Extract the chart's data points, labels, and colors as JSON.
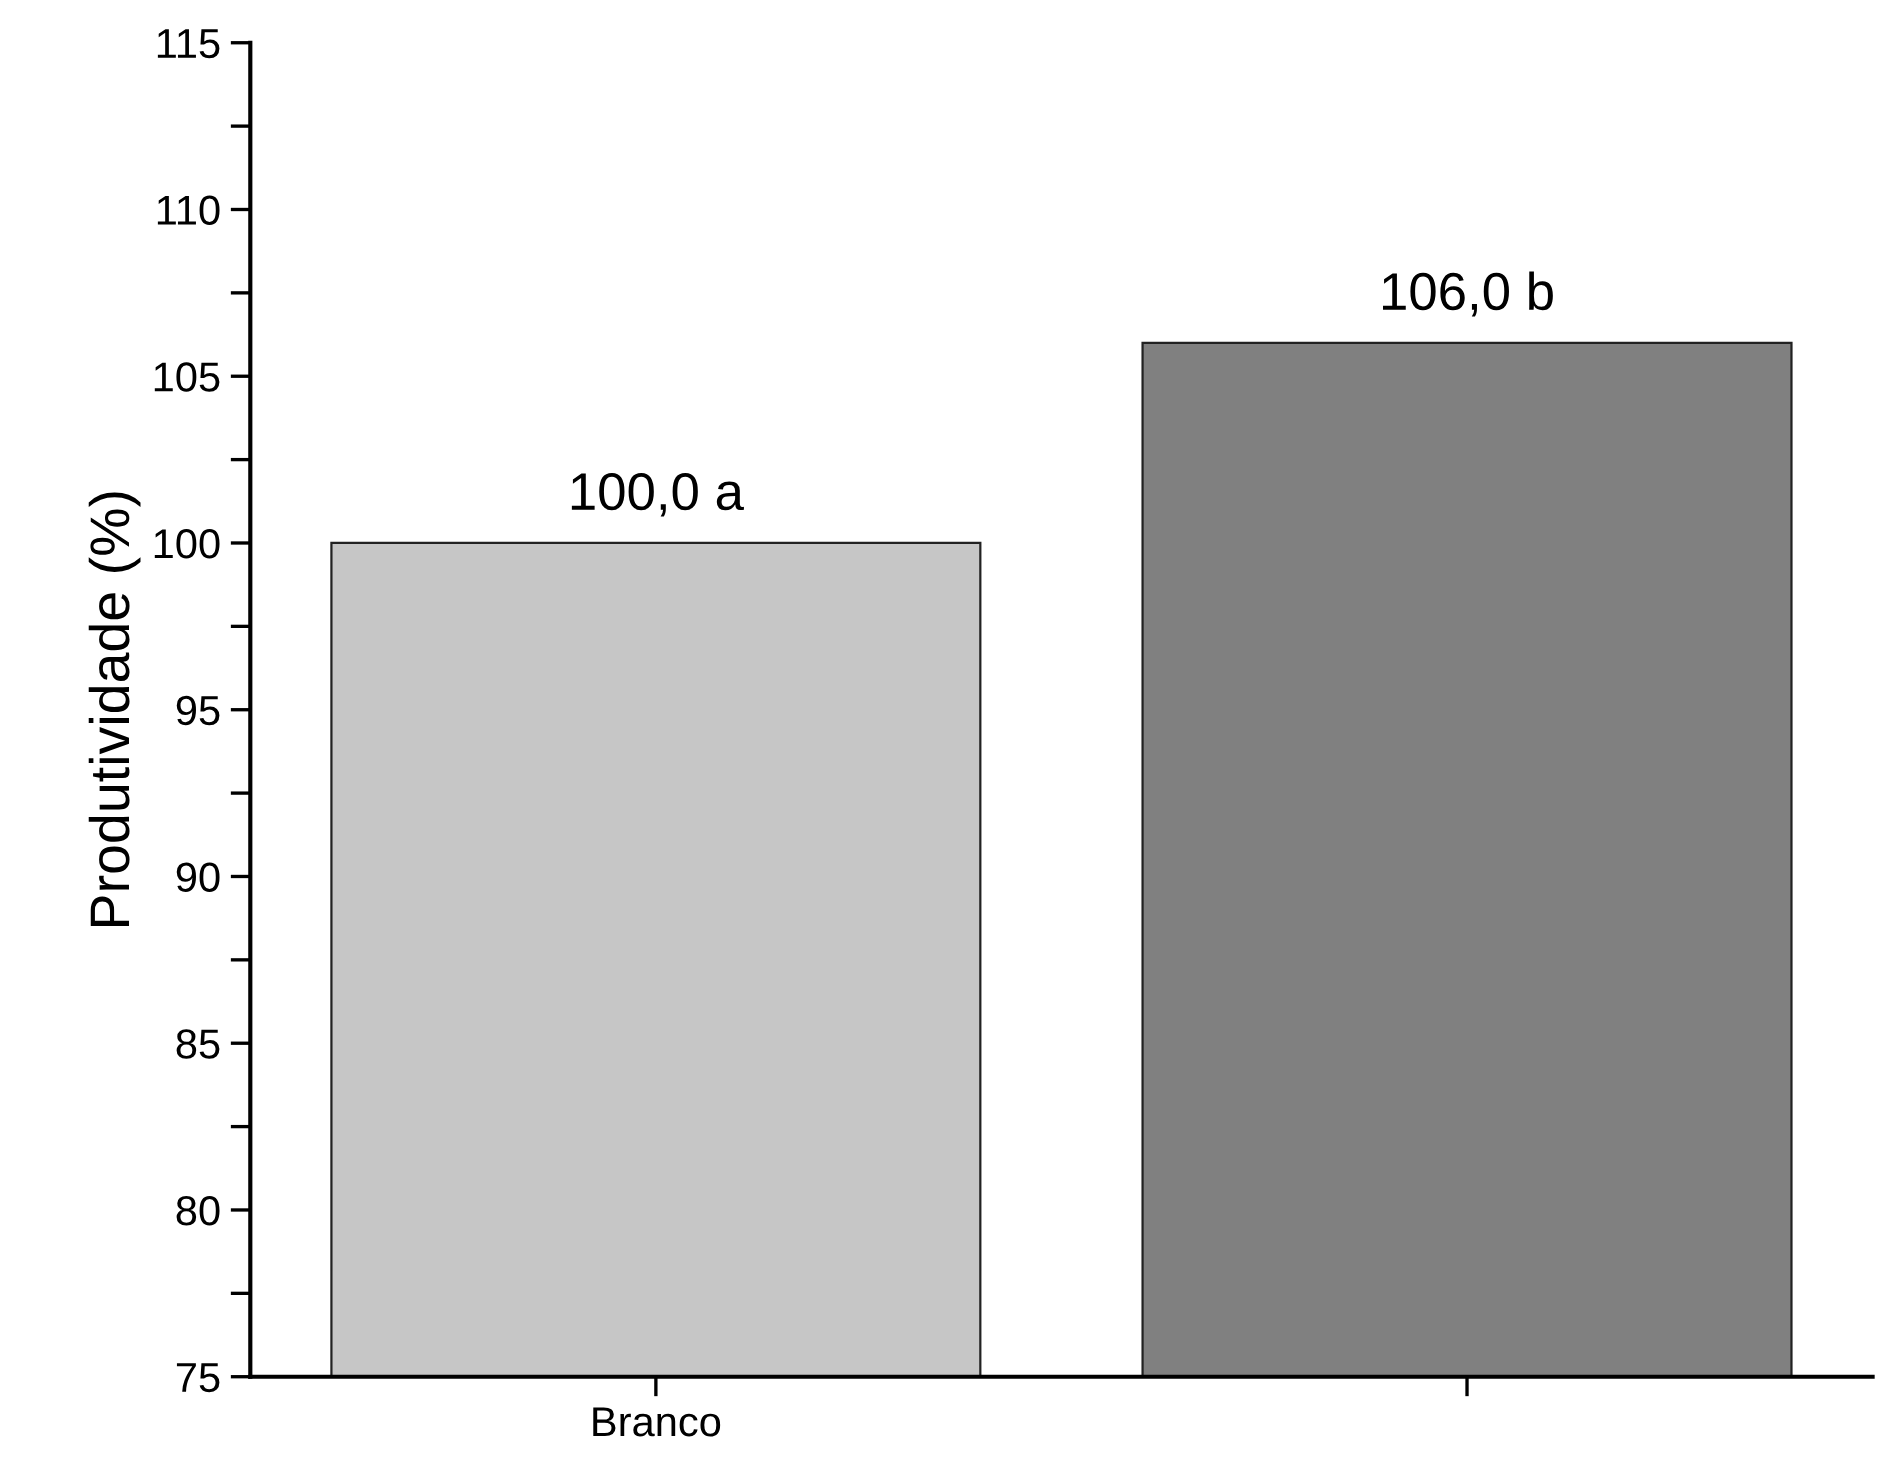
{
  "chart_data": {
    "type": "bar",
    "ylabel": "Produtividade (%)",
    "categories": [
      "Branco",
      null
    ],
    "values": [
      100.0,
      106.0
    ],
    "colors": [
      "#c6c6c6",
      "#808080"
    ],
    "value_labels": [
      "100,0 a",
      "106,0 b"
    ],
    "ylim": [
      75,
      115
    ],
    "yticks": [
      75,
      {
        "value": 77.5,
        "label": null
      },
      80,
      {
        "value": 82.5,
        "label": null
      },
      85,
      {
        "value": 87.5,
        "label": null
      },
      90,
      {
        "value": 92.5,
        "label": null
      },
      95,
      {
        "value": 97.5,
        "label": null
      },
      100,
      {
        "value": 102.5,
        "label": null
      },
      105,
      {
        "value": 107.5,
        "label": null
      },
      110,
      {
        "value": 112.5,
        "label": null
      },
      115
    ],
    "grid": false,
    "legend": false
  }
}
